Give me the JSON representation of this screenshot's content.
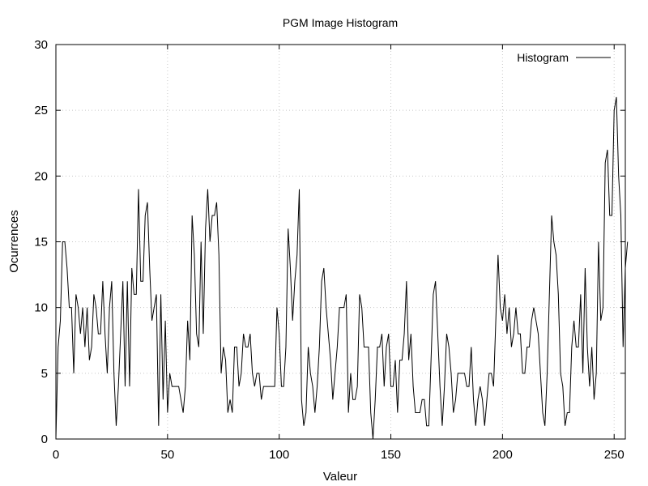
{
  "chart_data": {
    "type": "line",
    "title": "PGM Image Histogram",
    "xlabel": "Valeur",
    "ylabel": "Ocurrences",
    "xlim": [
      0,
      255
    ],
    "ylim": [
      0,
      30
    ],
    "xticks": [
      0,
      50,
      100,
      150,
      200,
      250
    ],
    "yticks": [
      0,
      5,
      10,
      15,
      20,
      25,
      30
    ],
    "grid": true,
    "legend_position": "top-right",
    "series": [
      {
        "name": "Histogram",
        "color": "#000000",
        "values": [
          0,
          7,
          9,
          15,
          15,
          13,
          10,
          10,
          5,
          11,
          10,
          8,
          10,
          7,
          10,
          6,
          7,
          11,
          10,
          8,
          8,
          12,
          8,
          5,
          10,
          12,
          5,
          1,
          4,
          8,
          12,
          4,
          12,
          4,
          13,
          11,
          11,
          19,
          12,
          12,
          17,
          18,
          13,
          9,
          10,
          11,
          1,
          11,
          3,
          9,
          2,
          5,
          4,
          4,
          4,
          4,
          3,
          2,
          4,
          9,
          6,
          17,
          14,
          8,
          7,
          15,
          8,
          16,
          19,
          15,
          17,
          17,
          18,
          14,
          5,
          7,
          6,
          2,
          3,
          2,
          7,
          7,
          4,
          5,
          8,
          7,
          7,
          8,
          5,
          4,
          5,
          5,
          3,
          4,
          4,
          4,
          4,
          4,
          4,
          10,
          8,
          4,
          4,
          7,
          16,
          13,
          9,
          12,
          14,
          19,
          3,
          1,
          2,
          7,
          5,
          4,
          2,
          4,
          7,
          12,
          13,
          10,
          8,
          6,
          3,
          5,
          7,
          10,
          10,
          10,
          11,
          2,
          5,
          3,
          3,
          4,
          11,
          10,
          7,
          7,
          7,
          2,
          0,
          3,
          7,
          7,
          8,
          4,
          7,
          8,
          4,
          4,
          6,
          2,
          6,
          6,
          8,
          12,
          6,
          8,
          4,
          2,
          2,
          2,
          3,
          3,
          1,
          1,
          6,
          11,
          12,
          8,
          4,
          1,
          4,
          8,
          7,
          5,
          2,
          3,
          5,
          5,
          5,
          5,
          4,
          4,
          7,
          3,
          1,
          3,
          4,
          3,
          1,
          3,
          5,
          5,
          4,
          9,
          14,
          10,
          9,
          11,
          8,
          10,
          7,
          8,
          10,
          8,
          8,
          5,
          5,
          7,
          7,
          9,
          10,
          9,
          8,
          5,
          2,
          1,
          5,
          11,
          17,
          15,
          14,
          11,
          5,
          4,
          1,
          2,
          2,
          7,
          9,
          7,
          7,
          11,
          5,
          13,
          7,
          4,
          7,
          3,
          5,
          15,
          9,
          10,
          21,
          22,
          17,
          17,
          25,
          26,
          20,
          17,
          7,
          13,
          15
        ]
      }
    ]
  }
}
